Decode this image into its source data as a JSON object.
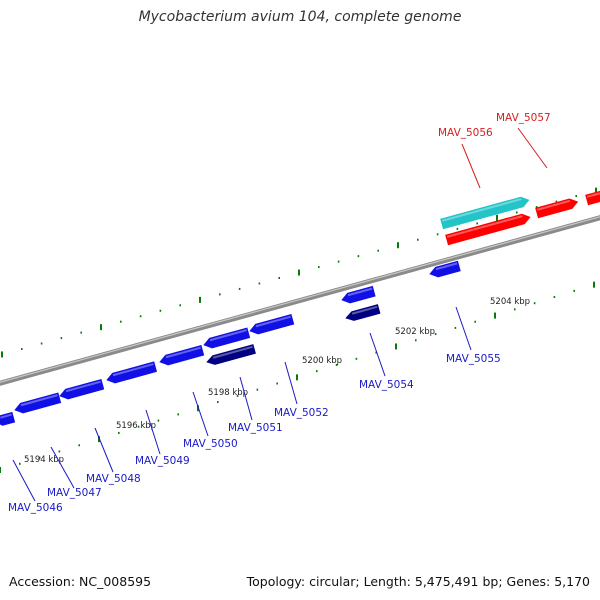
{
  "title": "Mycobacterium avium 104, complete genome",
  "footer": {
    "accession": "Accession: NC_008595",
    "summary": "Topology: circular; Length: 5,475,491 bp; Genes: 5,170"
  },
  "colors": {
    "backbone": "#808080",
    "tick": "#0a7a0a",
    "gene_forward": "#ff0000",
    "gene_reverse": "#1010e6",
    "gene_selected_reverse": "#000080",
    "gene_other": "#22c4c8",
    "label_forward": "#d42020",
    "label_reverse": "#1a1ac8",
    "axis_label": "#222222"
  },
  "scale": {
    "labels": [
      {
        "text": "5194 kbp",
        "kbp": 5194
      },
      {
        "text": "5196 kbp",
        "kbp": 5196
      },
      {
        "text": "5198 kbp",
        "kbp": 5198
      },
      {
        "text": "5200 kbp",
        "kbp": 5200
      },
      {
        "text": "5202 kbp",
        "kbp": 5202
      },
      {
        "text": "5204 kbp",
        "kbp": 5204
      }
    ]
  },
  "genes": [
    {
      "name": "MAV_5046",
      "strand": "reverse",
      "label": "MAV_5046"
    },
    {
      "name": "MAV_5047",
      "strand": "reverse",
      "label": "MAV_5047"
    },
    {
      "name": "MAV_5048",
      "strand": "reverse",
      "label": "MAV_5048"
    },
    {
      "name": "MAV_5049",
      "strand": "reverse",
      "label": "MAV_5049"
    },
    {
      "name": "MAV_5050",
      "strand": "reverse",
      "label": "MAV_5050"
    },
    {
      "name": "MAV_5051",
      "strand": "reverse",
      "label": "MAV_5051"
    },
    {
      "name": "MAV_5052",
      "strand": "reverse",
      "label": "MAV_5052"
    },
    {
      "name": "MAV_5054",
      "strand": "reverse",
      "label": "MAV_5054"
    },
    {
      "name": "MAV_5055",
      "strand": "reverse",
      "label": "MAV_5055"
    },
    {
      "name": "MAV_5056",
      "strand": "forward",
      "label": "MAV_5056"
    },
    {
      "name": "MAV_5057",
      "strand": "forward",
      "label": "MAV_5057"
    }
  ]
}
